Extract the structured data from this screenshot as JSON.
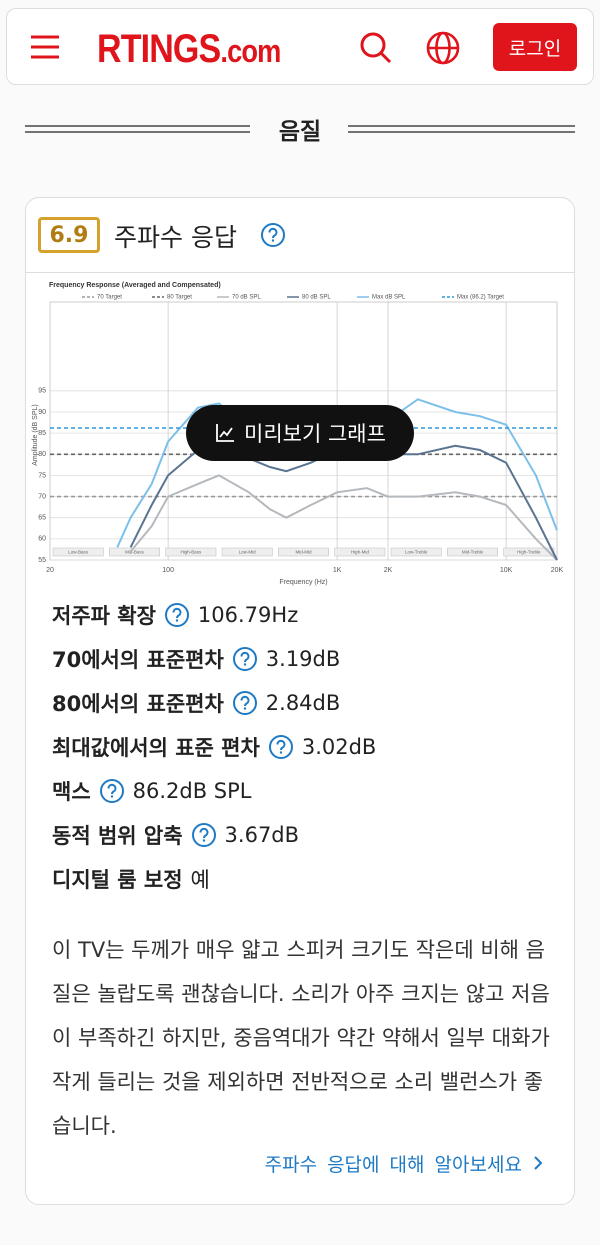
{
  "header": {
    "logo_main": "RTINGS",
    "logo_suffix": ".com",
    "login": "로그인"
  },
  "section_title": "음질",
  "card": {
    "score": "6.9",
    "title": "주파수 응답"
  },
  "graph": {
    "type": "line",
    "title": "Frequency Response (Averaged and Compensated)",
    "x_label": "Frequency (Hz)",
    "y_label": "Amplitude (dB SPL)",
    "log_x": true,
    "x": [
      20,
      50,
      60,
      80,
      100,
      150,
      200,
      300,
      400,
      500,
      700,
      1000,
      1500,
      2000,
      3000,
      5000,
      7000,
      10000,
      15000,
      20000
    ],
    "series": [
      {
        "name": "70 Target",
        "color": "#9a9a9a",
        "dashed": true,
        "values": [
          70,
          70,
          70,
          70,
          70,
          70,
          70,
          70,
          70,
          70,
          70,
          70,
          70,
          70,
          70,
          70,
          70,
          70,
          70,
          70
        ]
      },
      {
        "name": "80 Target",
        "color": "#666666",
        "dashed": true,
        "values": [
          80,
          80,
          80,
          80,
          80,
          80,
          80,
          80,
          80,
          80,
          80,
          80,
          80,
          80,
          80,
          80,
          80,
          80,
          80,
          80
        ]
      },
      {
        "name": "70 dB SPL",
        "color": "#b5b9be",
        "values": [
          null,
          null,
          57,
          63,
          70,
          73,
          75,
          71,
          67,
          65,
          68,
          71,
          72,
          70,
          70,
          71,
          70,
          68,
          60,
          55
        ]
      },
      {
        "name": "80 dB SPL",
        "color": "#5a7390",
        "values": [
          null,
          null,
          58,
          68,
          75,
          81,
          82,
          79,
          77,
          76,
          78,
          81,
          81,
          80,
          80,
          82,
          81,
          78,
          65,
          55
        ]
      },
      {
        "name": "Max dB SPL",
        "color": "#7cc0ea",
        "values": [
          null,
          58,
          65,
          73,
          83,
          91,
          92,
          86,
          83,
          82,
          84,
          85,
          88,
          88,
          93,
          90,
          89,
          87,
          75,
          62
        ]
      },
      {
        "name": "Max (86.2) Target",
        "color": "#2f97dc",
        "dashed": true,
        "values": [
          86.2,
          86.2,
          86.2,
          86.2,
          86.2,
          86.2,
          86.2,
          86.2,
          86.2,
          86.2,
          86.2,
          86.2,
          86.2,
          86.2,
          86.2,
          86.2,
          86.2,
          86.2,
          86.2,
          86.2
        ]
      }
    ],
    "xlim": [
      20,
      20000
    ],
    "ylim": [
      55,
      116
    ],
    "xticks": [
      20,
      100,
      {
        "value": 1000,
        "label": "1K"
      },
      {
        "value": 2000,
        "label": "2K"
      },
      {
        "value": 10000,
        "label": "10K"
      },
      {
        "value": 20000,
        "label": "20K"
      }
    ],
    "yticks": [
      55,
      60,
      65,
      70,
      75,
      80,
      85,
      90,
      95
    ],
    "bands": [
      "Low-Bass",
      "Mid-Bass",
      "High-Bass",
      "Low-Mid",
      "Mid-Mid",
      "High-Mid",
      "Low-Treble",
      "Mid-Treble",
      "High-Treble"
    ],
    "grid": true
  },
  "graph_button": "미리보기 그래프",
  "measurements": [
    {
      "label": "저주파 확장",
      "value": "106.79Hz",
      "help": true
    },
    {
      "label": "70에서의 표준편차",
      "value": "3.19dB",
      "help": true
    },
    {
      "label": "80에서의 표준편차",
      "value": "2.84dB",
      "help": true
    },
    {
      "label": "최대값에서의 표준 편차",
      "value": "3.02dB",
      "help": true
    },
    {
      "label": "맥스",
      "value": "86.2dB SPL",
      "help": true
    },
    {
      "label": "동적 범위 압축",
      "value": "3.67dB",
      "help": true
    },
    {
      "label": "디지털 룸 보정",
      "value": "예",
      "help": false
    }
  ],
  "description": "이 TV는 두께가 매우 얇고 스피커 크기도 작은데 비해 음질은 놀랍도록 괜찮습니다. 소리가 아주 크지는 않고 저음이 부족하긴 하지만, 중음역대가 약간 약해서 일부 대화가 작게 들리는 것을 제외하면 전반적으로 소리 밸런스가 좋습니다.",
  "link": "주파수 응답에 대해 알아보세요"
}
